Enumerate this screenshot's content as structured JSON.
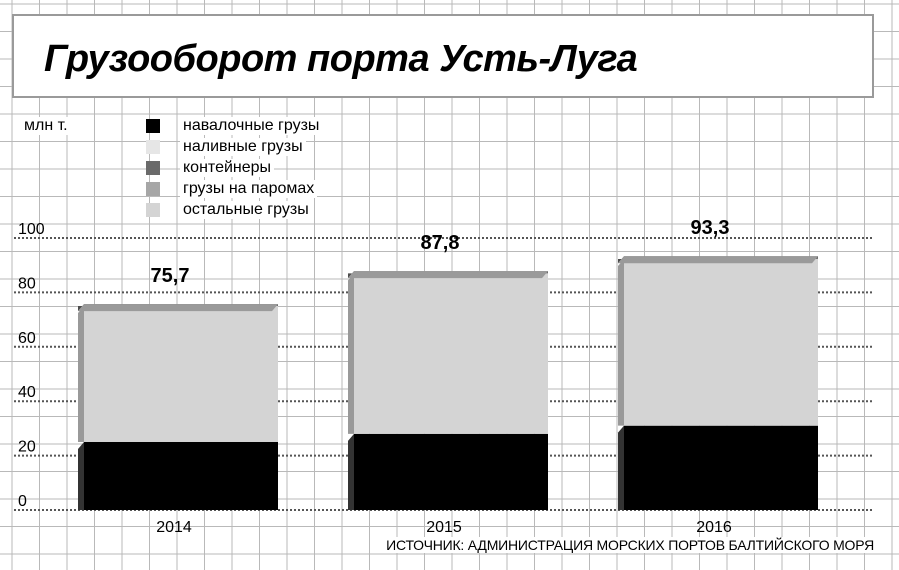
{
  "header": {
    "title": "Грузооборот порта Усть-Луга"
  },
  "unit_label": "млн т.",
  "source": "ИСТОЧНИК: АДМИНИСТРАЦИЯ МОРСКИХ ПОРТОВ БАЛТИЙСКОГО МОРЯ",
  "legend": [
    {
      "label": "навалочные грузы",
      "color": "#000000"
    },
    {
      "label": "наливные грузы",
      "color": "#e6e6e6"
    },
    {
      "label": "контейнеры",
      "color": "#6a6a6a"
    },
    {
      "label": "грузы на паромах",
      "color": "#a6a6a6"
    },
    {
      "label": "остальные грузы",
      "color": "#d4d4d4"
    }
  ],
  "chart_data": {
    "type": "bar",
    "stacked": true,
    "title": "Грузооборот порта Усть-Луга",
    "ylabel": "млн т.",
    "categories": [
      "2014",
      "2015",
      "2016"
    ],
    "ylim": [
      0,
      100
    ],
    "yticks": [
      "0",
      "20",
      "40",
      "60",
      "80",
      "100"
    ],
    "totals": [
      "75,7",
      "87,8",
      "93,3"
    ],
    "series": [
      {
        "name": "навалочные грузы",
        "values": [
          25,
          28,
          31
        ],
        "color": "#000000"
      },
      {
        "name": "наливные грузы",
        "values": [
          50,
          59,
          61.3
        ],
        "color": "#d4d4d4"
      },
      {
        "name": "контейнеры",
        "values": [
          0.7,
          0.8,
          1.0
        ],
        "color": "#6a6a6a"
      }
    ],
    "grid": true,
    "legend_position": "top-left"
  }
}
